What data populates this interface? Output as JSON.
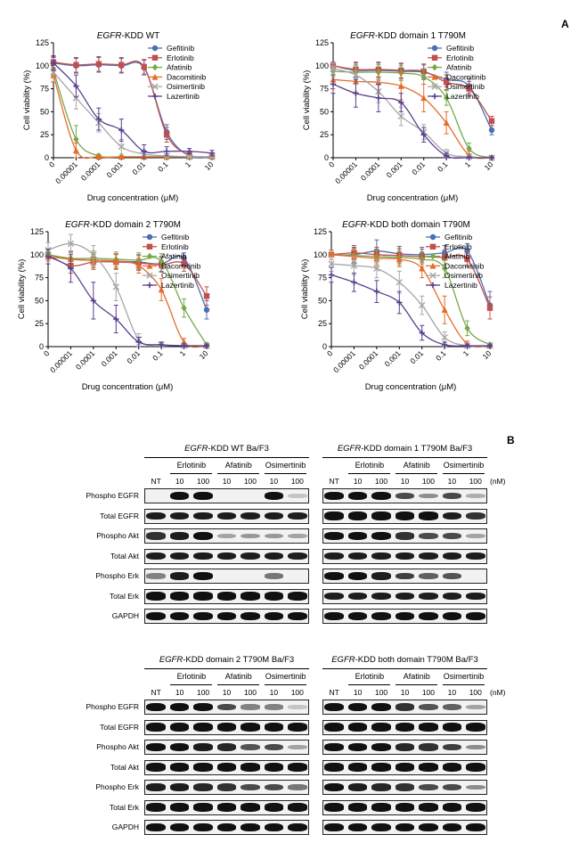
{
  "panel_labels": {
    "a": "A",
    "b": "B"
  },
  "series_styles": [
    {
      "name": "Gefitinib",
      "color": "#4a6fb3",
      "marker": "circle"
    },
    {
      "name": "Erlotinib",
      "color": "#c0504d",
      "marker": "square"
    },
    {
      "name": "Afatinib",
      "color": "#77a94a",
      "marker": "diamond"
    },
    {
      "name": "Dacomitinib",
      "color": "#e46c2a",
      "marker": "triangle"
    },
    {
      "name": "Osimertinib",
      "color": "#a6a6a6",
      "marker": "x"
    },
    {
      "name": "Lazertinib",
      "color": "#5a3f8f",
      "marker": "plus"
    }
  ],
  "chart_data": [
    {
      "type": "line",
      "title_italic": "EGFR",
      "title_rest": "-KDD WT",
      "xlabel": "Drug concentration (μM)",
      "ylabel": "Cell viability (%)",
      "x_scale": "log",
      "x": [
        0,
        1e-05,
        0.0001,
        0.001,
        0.01,
        0.1,
        1,
        10
      ],
      "x_tick_labels": [
        "0",
        "0.00001",
        "0.0001",
        "0.001",
        "0.01",
        "0.1",
        "1",
        "10"
      ],
      "y_ticks": [
        0,
        25,
        50,
        75,
        100,
        125
      ],
      "ylim": [
        0,
        125
      ],
      "legend_position": "top-right",
      "series": [
        {
          "name": "Gefitinib",
          "values": [
            103,
            100,
            101,
            100,
            98,
            28,
            2,
            1
          ],
          "error": [
            6,
            8,
            8,
            8,
            8,
            8,
            2,
            2
          ]
        },
        {
          "name": "Erlotinib",
          "values": [
            104,
            101,
            102,
            101,
            99,
            25,
            3,
            1
          ],
          "error": [
            6,
            8,
            8,
            8,
            8,
            8,
            2,
            2
          ]
        },
        {
          "name": "Afatinib",
          "values": [
            95,
            20,
            2,
            1,
            1,
            1,
            1,
            1
          ],
          "error": [
            8,
            15,
            2,
            1,
            1,
            1,
            1,
            1
          ]
        },
        {
          "name": "Dacomitinib",
          "values": [
            90,
            8,
            1,
            1,
            1,
            1,
            1,
            1
          ],
          "error": [
            8,
            8,
            2,
            1,
            1,
            1,
            1,
            1
          ]
        },
        {
          "name": "Osimertinib",
          "values": [
            93,
            65,
            38,
            12,
            4,
            2,
            1,
            1
          ],
          "error": [
            10,
            12,
            10,
            8,
            4,
            2,
            1,
            1
          ]
        },
        {
          "name": "Lazertinib",
          "values": [
            103,
            78,
            42,
            30,
            7,
            7,
            7,
            5
          ],
          "error": [
            8,
            12,
            12,
            12,
            7,
            5,
            3,
            3
          ]
        }
      ]
    },
    {
      "type": "line",
      "title_italic": "EGFR",
      "title_rest": "-KDD domain 1 T790M",
      "xlabel": "Drug concentration (μM)",
      "ylabel": "Cell viability (%)",
      "x_scale": "log",
      "x": [
        0,
        1e-05,
        0.0001,
        0.001,
        0.01,
        0.1,
        1,
        10
      ],
      "x_tick_labels": [
        "0",
        "0.00001",
        "0.0001",
        "0.001",
        "0.01",
        "0.1",
        "1",
        "10"
      ],
      "y_ticks": [
        0,
        25,
        50,
        75,
        100,
        125
      ],
      "ylim": [
        0,
        125
      ],
      "legend_position": "top-right",
      "series": [
        {
          "name": "Gefitinib",
          "values": [
            100,
            95,
            95,
            94,
            93,
            85,
            78,
            30
          ],
          "error": [
            4,
            8,
            8,
            8,
            8,
            8,
            8,
            5
          ]
        },
        {
          "name": "Erlotinib",
          "values": [
            100,
            96,
            96,
            95,
            94,
            82,
            75,
            40
          ],
          "error": [
            4,
            8,
            8,
            8,
            8,
            8,
            8,
            5
          ]
        },
        {
          "name": "Afatinib",
          "values": [
            94,
            93,
            93,
            92,
            88,
            65,
            10,
            0
          ],
          "error": [
            6,
            8,
            8,
            8,
            8,
            8,
            6,
            2
          ]
        },
        {
          "name": "Dacomitinib",
          "values": [
            85,
            83,
            82,
            78,
            65,
            38,
            3,
            0
          ],
          "error": [
            10,
            12,
            12,
            15,
            15,
            12,
            4,
            2
          ]
        },
        {
          "name": "Osimertinib",
          "values": [
            97,
            90,
            72,
            45,
            28,
            5,
            1,
            0
          ],
          "error": [
            6,
            10,
            12,
            10,
            8,
            4,
            2,
            1
          ]
        },
        {
          "name": "Lazertinib",
          "values": [
            80,
            70,
            65,
            60,
            25,
            2,
            0,
            0
          ],
          "error": [
            10,
            15,
            15,
            10,
            8,
            3,
            1,
            1
          ]
        }
      ]
    },
    {
      "type": "line",
      "title_italic": "EGFR",
      "title_rest": "-KDD domain 2 T790M",
      "xlabel": "Drug concentration (μM)",
      "ylabel": "Cell viability (%)",
      "x_scale": "log",
      "x": [
        0,
        1e-05,
        0.0001,
        0.001,
        0.01,
        0.1,
        1,
        10
      ],
      "x_tick_labels": [
        "0",
        "0.00001",
        "0.0001",
        "0.001",
        "0.01",
        "0.1",
        "1",
        "10"
      ],
      "y_ticks": [
        0,
        25,
        50,
        75,
        100,
        125
      ],
      "ylim": [
        0,
        125
      ],
      "legend_position": "top-right",
      "series": [
        {
          "name": "Gefitinib",
          "values": [
            100,
            95,
            94,
            93,
            92,
            90,
            96,
            40
          ],
          "error": [
            5,
            8,
            8,
            8,
            8,
            8,
            6,
            10
          ]
        },
        {
          "name": "Erlotinib",
          "values": [
            100,
            88,
            92,
            92,
            91,
            89,
            90,
            55
          ],
          "error": [
            5,
            8,
            8,
            8,
            8,
            8,
            8,
            10
          ]
        },
        {
          "name": "Afatinib",
          "values": [
            100,
            96,
            96,
            95,
            94,
            93,
            42,
            2
          ],
          "error": [
            5,
            8,
            8,
            8,
            8,
            8,
            10,
            2
          ]
        },
        {
          "name": "Dacomitinib",
          "values": [
            98,
            95,
            94,
            93,
            88,
            62,
            5,
            1
          ],
          "error": [
            5,
            8,
            8,
            8,
            8,
            12,
            4,
            2
          ]
        },
        {
          "name": "Osimertinib",
          "values": [
            105,
            112,
            100,
            65,
            8,
            2,
            1,
            1
          ],
          "error": [
            8,
            10,
            10,
            15,
            6,
            3,
            2,
            1
          ]
        },
        {
          "name": "Lazertinib",
          "values": [
            98,
            85,
            50,
            30,
            5,
            2,
            1,
            1
          ],
          "error": [
            8,
            15,
            20,
            15,
            5,
            3,
            2,
            1
          ]
        }
      ]
    },
    {
      "type": "line",
      "title_italic": "EGFR",
      "title_rest": "-KDD both domain T790M",
      "xlabel": "Drug concentration (μM)",
      "ylabel": "Cell viability (%)",
      "x_scale": "log",
      "x": [
        0,
        1e-05,
        0.0001,
        0.001,
        0.01,
        0.1,
        1,
        10
      ],
      "x_tick_labels": [
        "0",
        "0.00001",
        "0.0001",
        "0.001",
        "0.01",
        "0.1",
        "1",
        "10"
      ],
      "y_ticks": [
        0,
        25,
        50,
        75,
        100,
        125
      ],
      "ylim": [
        0,
        125
      ],
      "legend_position": "top-right",
      "series": [
        {
          "name": "Gefitinib",
          "values": [
            100,
            100,
            104,
            101,
            100,
            102,
            104,
            45
          ],
          "error": [
            5,
            8,
            12,
            8,
            8,
            8,
            8,
            15
          ]
        },
        {
          "name": "Erlotinib",
          "values": [
            100,
            102,
            100,
            99,
            98,
            97,
            95,
            42
          ],
          "error": [
            5,
            8,
            8,
            8,
            8,
            8,
            8,
            12
          ]
        },
        {
          "name": "Afatinib",
          "values": [
            100,
            99,
            98,
            97,
            95,
            85,
            20,
            2
          ],
          "error": [
            5,
            8,
            8,
            8,
            8,
            10,
            8,
            2
          ]
        },
        {
          "name": "Dacomitinib",
          "values": [
            100,
            98,
            96,
            95,
            85,
            40,
            3,
            1
          ],
          "error": [
            5,
            8,
            8,
            8,
            10,
            15,
            3,
            1
          ]
        },
        {
          "name": "Osimertinib",
          "values": [
            90,
            88,
            85,
            70,
            45,
            10,
            1,
            1
          ],
          "error": [
            8,
            10,
            10,
            12,
            10,
            6,
            2,
            1
          ]
        },
        {
          "name": "Lazertinib",
          "values": [
            78,
            70,
            60,
            48,
            15,
            2,
            1,
            1
          ],
          "error": [
            8,
            10,
            12,
            12,
            8,
            3,
            1,
            1
          ]
        }
      ]
    }
  ],
  "blots": [
    {
      "title_italic": "EGFR",
      "title_rest": "-KDD WT Ba/F3",
      "groups": [
        "Erlotinib",
        "Afatinib",
        "Osimertinib"
      ],
      "lanes": [
        "NT",
        "10",
        "100",
        "10",
        "100",
        "10",
        "100"
      ],
      "unit": "",
      "rows": [
        {
          "label": "Phospho EGFR",
          "intensities": [
            0,
            0.9,
            0.9,
            0,
            0,
            0.85,
            0.05
          ]
        },
        {
          "label": "Total EGFR",
          "intensities": [
            0.8,
            0.8,
            0.8,
            0.8,
            0.8,
            0.8,
            0.8
          ]
        },
        {
          "label": "Phospho Akt",
          "intensities": [
            0.7,
            0.8,
            0.95,
            0.2,
            0.25,
            0.25,
            0.2
          ]
        },
        {
          "label": "Total Akt",
          "intensities": [
            0.8,
            0.8,
            0.8,
            0.8,
            0.8,
            0.8,
            0.8
          ]
        },
        {
          "label": "Phospho Erk",
          "intensities": [
            0.35,
            0.8,
            0.85,
            0,
            0,
            0.4,
            0
          ]
        },
        {
          "label": "Total Erk",
          "intensities": [
            0.85,
            0.85,
            0.85,
            0.85,
            0.85,
            0.85,
            0.85
          ]
        },
        {
          "label": "GAPDH",
          "intensities": [
            0.9,
            0.9,
            0.9,
            0.9,
            0.9,
            0.9,
            0.9
          ]
        }
      ]
    },
    {
      "title_italic": "EGFR",
      "title_rest": "-KDD domain 1 T790M Ba/F3",
      "groups": [
        "Erlotinib",
        "Afatinib",
        "Osimertinib"
      ],
      "lanes": [
        "NT",
        "10",
        "100",
        "10",
        "100",
        "10",
        "100"
      ],
      "unit": "(nM)",
      "rows": [
        {
          "label": "Phospho EGFR",
          "intensities": [
            0.9,
            0.9,
            0.9,
            0.6,
            0.3,
            0.6,
            0.15
          ]
        },
        {
          "label": "Total EGFR",
          "intensities": [
            0.9,
            0.9,
            0.9,
            0.85,
            0.85,
            0.8,
            0.7
          ]
        },
        {
          "label": "Phospho Akt",
          "intensities": [
            0.85,
            0.85,
            0.85,
            0.7,
            0.6,
            0.6,
            0.2
          ]
        },
        {
          "label": "Total Akt",
          "intensities": [
            0.8,
            0.8,
            0.8,
            0.8,
            0.8,
            0.8,
            0.8
          ]
        },
        {
          "label": "Phospho Erk",
          "intensities": [
            0.85,
            0.85,
            0.8,
            0.65,
            0.5,
            0.55,
            0
          ]
        },
        {
          "label": "Total Erk",
          "intensities": [
            0.8,
            0.8,
            0.8,
            0.8,
            0.8,
            0.8,
            0.8
          ]
        },
        {
          "label": "GAPDH",
          "intensities": [
            0.9,
            0.9,
            0.9,
            0.9,
            0.9,
            0.9,
            0.9
          ]
        }
      ]
    },
    {
      "title_italic": "EGFR",
      "title_rest": "-KDD domain 2 T790M Ba/F3",
      "groups": [
        "Erlotinib",
        "Afatinib",
        "Osimertinib"
      ],
      "lanes": [
        "NT",
        "10",
        "100",
        "10",
        "100",
        "10",
        "100"
      ],
      "unit": "",
      "rows": [
        {
          "label": "Phospho EGFR",
          "intensities": [
            0.9,
            0.9,
            0.85,
            0.6,
            0.35,
            0.35,
            0.05
          ]
        },
        {
          "label": "Total EGFR",
          "intensities": [
            0.9,
            0.9,
            0.9,
            0.85,
            0.85,
            0.85,
            0.85
          ]
        },
        {
          "label": "Phospho Akt",
          "intensities": [
            0.85,
            0.85,
            0.8,
            0.75,
            0.55,
            0.6,
            0.2
          ]
        },
        {
          "label": "Total Akt",
          "intensities": [
            0.85,
            0.85,
            0.85,
            0.85,
            0.85,
            0.85,
            0.85
          ]
        },
        {
          "label": "Phospho Erk",
          "intensities": [
            0.8,
            0.8,
            0.75,
            0.7,
            0.6,
            0.6,
            0.4
          ]
        },
        {
          "label": "Total Erk",
          "intensities": [
            0.85,
            0.85,
            0.85,
            0.85,
            0.85,
            0.85,
            0.85
          ]
        },
        {
          "label": "GAPDH",
          "intensities": [
            0.9,
            0.9,
            0.9,
            0.9,
            0.9,
            0.9,
            0.9
          ]
        }
      ]
    },
    {
      "title_italic": "EGFR",
      "title_rest": "-KDD both domain T790M Ba/F3",
      "groups": [
        "Erlotinib",
        "Afatinib",
        "Osimertinib"
      ],
      "lanes": [
        "NT",
        "10",
        "100",
        "10",
        "100",
        "10",
        "100"
      ],
      "unit": "(nM)",
      "rows": [
        {
          "label": "Phospho EGFR",
          "intensities": [
            0.9,
            0.9,
            0.9,
            0.7,
            0.55,
            0.5,
            0.2
          ]
        },
        {
          "label": "Total EGFR",
          "intensities": [
            0.9,
            0.9,
            0.9,
            0.85,
            0.85,
            0.85,
            0.85
          ]
        },
        {
          "label": "Phospho Akt",
          "intensities": [
            0.85,
            0.85,
            0.85,
            0.75,
            0.7,
            0.65,
            0.3
          ]
        },
        {
          "label": "Total Akt",
          "intensities": [
            0.85,
            0.85,
            0.85,
            0.85,
            0.85,
            0.85,
            0.85
          ]
        },
        {
          "label": "Phospho Erk",
          "intensities": [
            0.85,
            0.8,
            0.75,
            0.7,
            0.6,
            0.6,
            0.3
          ]
        },
        {
          "label": "Total Erk",
          "intensities": [
            0.85,
            0.85,
            0.85,
            0.85,
            0.85,
            0.85,
            0.85
          ]
        },
        {
          "label": "GAPDH",
          "intensities": [
            0.9,
            0.9,
            0.9,
            0.9,
            0.9,
            0.9,
            0.9
          ]
        }
      ]
    }
  ]
}
